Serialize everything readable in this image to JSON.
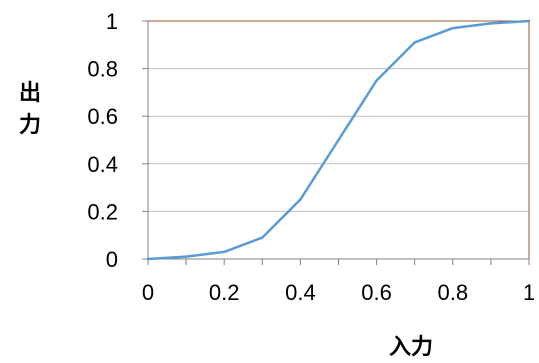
{
  "chart_data": {
    "type": "line",
    "title": "",
    "xlabel": "入力",
    "ylabel": "出力",
    "xlim": [
      0,
      1
    ],
    "ylim": [
      0,
      1
    ],
    "x_ticks": [
      "0",
      "0.2",
      "0.4",
      "0.6",
      "0.8",
      "1"
    ],
    "y_ticks": [
      "0",
      "0.2",
      "0.4",
      "0.6",
      "0.8",
      "1"
    ],
    "grid": "horizontal",
    "legend": "none",
    "series": [
      {
        "x": [
          0,
          0.1,
          0.2,
          0.3,
          0.4,
          0.5,
          0.6,
          0.7,
          0.8,
          0.9,
          1.0
        ],
        "y": [
          0,
          0.01,
          0.03,
          0.09,
          0.25,
          0.5,
          0.75,
          0.91,
          0.97,
          0.99,
          1.0
        ]
      }
    ],
    "colors": {
      "line": "#5b9bd5",
      "plot_border": "#a0522d",
      "grid": "#bfbfbf",
      "axis": "#808080"
    }
  }
}
